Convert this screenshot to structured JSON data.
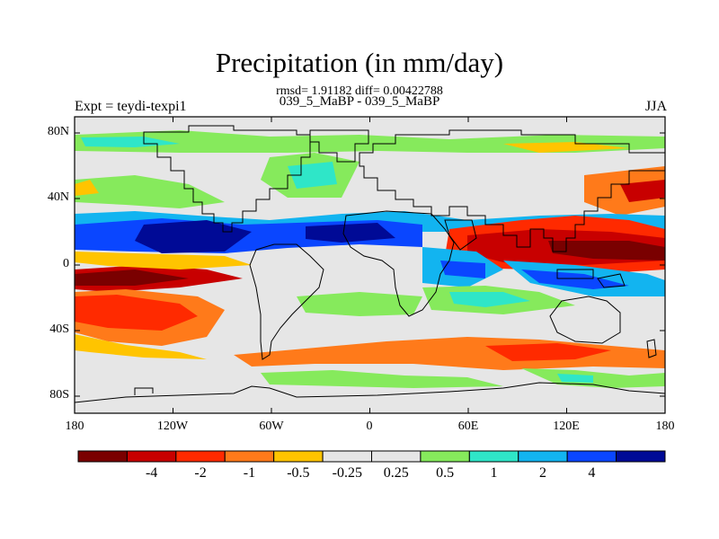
{
  "title": "Precipitation (in mm/day)",
  "stats": "rmsd= 1.91182 diff= 0.00422788",
  "experiments": "039_5_MaBP - 039_5_MaBP",
  "left_label": "Expt = teydi-texpi1",
  "right_label": "JJA",
  "map": {
    "projection": "cylindrical-equidistant",
    "lon_range": [
      -180,
      180
    ],
    "lat_range": [
      -90,
      90
    ],
    "y_ticks": [
      "80N",
      "40N",
      "0",
      "40S",
      "80S"
    ],
    "x_ticks": [
      "180",
      "120W",
      "60W",
      "0",
      "60E",
      "120E",
      "180"
    ]
  },
  "colorbar": {
    "colors": [
      "#7a0000",
      "#c80000",
      "#ff2a00",
      "#ff7a1a",
      "#ffc400",
      "#e6e6e6",
      "#e6e6e6",
      "#86ea5c",
      "#2fe6c8",
      "#12b4f0",
      "#0a46ff",
      "#000a96"
    ],
    "tick_labels": [
      "-4",
      "-2",
      "-1",
      "-0.5",
      "-0.25",
      "0.25",
      "0.5",
      "1",
      "2",
      "4"
    ]
  }
}
